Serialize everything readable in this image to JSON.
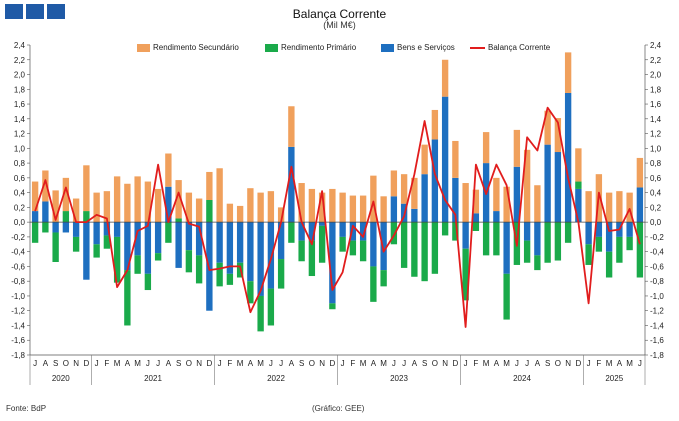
{
  "header": {
    "logo": "bdp-logo"
  },
  "chart_data": {
    "type": "bar",
    "title": "Balança Corrente",
    "subtitle": "(Mil M€)",
    "ylim": [
      -1.8,
      2.4
    ],
    "yticks": [
      "2,4",
      "2,2",
      "2,0",
      "1,8",
      "1,6",
      "1,4",
      "1,2",
      "1,0",
      "0,8",
      "0,6",
      "0,4",
      "0,2",
      "0,0",
      "-0,2",
      "-0,4",
      "-0,6",
      "-0,8",
      "-1,0",
      "-1,2",
      "-1,4",
      "-1,6",
      "-1,8"
    ],
    "categories": [
      "J",
      "A",
      "S",
      "O",
      "N",
      "D",
      "J",
      "F",
      "M",
      "A",
      "M",
      "J",
      "J",
      "A",
      "S",
      "O",
      "N",
      "D",
      "J",
      "F",
      "M",
      "A",
      "M",
      "J",
      "J",
      "A",
      "S",
      "O",
      "N",
      "D",
      "J",
      "F",
      "M",
      "A",
      "M",
      "J",
      "J",
      "A",
      "S",
      "O",
      "N",
      "D",
      "J",
      "F",
      "M",
      "A",
      "M",
      "J",
      "J",
      "A",
      "S",
      "O",
      "N",
      "D",
      "J",
      "F",
      "M",
      "A",
      "M",
      "J"
    ],
    "years": [
      {
        "label": "2020",
        "start": 0,
        "end": 5
      },
      {
        "label": "2021",
        "start": 6,
        "end": 17
      },
      {
        "label": "2022",
        "start": 18,
        "end": 29
      },
      {
        "label": "2023",
        "start": 30,
        "end": 41
      },
      {
        "label": "2024",
        "start": 42,
        "end": 53
      },
      {
        "label": "2025",
        "start": 54,
        "end": 59
      }
    ],
    "legend": [
      "Rendimento Secundário",
      "Rendimento Primário",
      "Bens e Serviços",
      "Balança Corrente"
    ],
    "colors": {
      "secundario": "#f0a05c",
      "primario": "#1aaa4a",
      "bens": "#1e6fc0",
      "balanca": "#e11d1d"
    },
    "series": [
      {
        "name": "Rendimento Secundário",
        "values": [
          0.4,
          0.42,
          0.43,
          0.45,
          0.32,
          0.62,
          0.4,
          0.42,
          0.62,
          0.52,
          0.62,
          0.55,
          0.45,
          0.45,
          0.52,
          0.4,
          0.32,
          0.38,
          0.73,
          0.25,
          0.22,
          0.46,
          0.4,
          0.42,
          0.2,
          0.55,
          0.53,
          0.45,
          0.4,
          0.45,
          0.4,
          0.36,
          0.36,
          0.63,
          0.35,
          0.35,
          0.4,
          0.42,
          0.4,
          0.4,
          0.5,
          0.5,
          0.53,
          0.32,
          0.42,
          0.45,
          0.48,
          0.5,
          0.98,
          0.5,
          0.46,
          0.46,
          0.55,
          0.45,
          0.42,
          0.65,
          0.4,
          0.42,
          0.4,
          0.4
        ]
      },
      {
        "name": "Rendimento Primário",
        "values": [
          -0.28,
          -0.14,
          -0.4,
          0.15,
          -0.2,
          0.15,
          -0.18,
          -0.18,
          -0.62,
          -0.75,
          -0.25,
          -0.22,
          -0.1,
          -0.28,
          0.05,
          -0.3,
          -0.38,
          0.3,
          -0.32,
          -0.15,
          -0.2,
          -0.3,
          -0.48,
          -0.5,
          -0.4,
          -0.28,
          -0.28,
          -0.48,
          -0.5,
          -0.08,
          -0.2,
          -0.2,
          -0.28,
          -0.48,
          -0.22,
          -0.3,
          -0.62,
          -0.74,
          -0.8,
          -0.7,
          -0.18,
          -0.25,
          -0.7,
          -0.12,
          -0.45,
          -0.45,
          -0.62,
          -0.58,
          -0.3,
          -0.2,
          -0.55,
          -0.52,
          -0.28,
          0.1,
          -0.28,
          -0.2,
          -0.35,
          -0.35,
          -0.18,
          -0.75
        ]
      },
      {
        "name": "Bens e Serviços",
        "values": [
          0.15,
          0.28,
          -0.14,
          -0.14,
          -0.2,
          -0.78,
          -0.3,
          -0.18,
          -0.2,
          -0.65,
          -0.45,
          -0.7,
          -0.42,
          0.48,
          -0.62,
          -0.38,
          -0.45,
          -1.2,
          -0.55,
          -0.7,
          -0.55,
          -0.8,
          -1.0,
          -0.9,
          -0.5,
          1.02,
          -0.25,
          -0.25,
          -0.05,
          -1.1,
          -0.2,
          -0.25,
          -0.25,
          -0.6,
          -0.65,
          0.35,
          0.25,
          0.18,
          0.65,
          1.12,
          1.7,
          0.6,
          -0.36,
          0.12,
          0.8,
          0.15,
          -0.7,
          0.75,
          -0.25,
          -0.45,
          1.05,
          0.95,
          1.75,
          0.45,
          -0.3,
          -0.2,
          -0.4,
          -0.2,
          -0.2,
          0.47
        ]
      },
      {
        "name": "Balança Corrente",
        "values": [
          0.15,
          0.57,
          0.03,
          0.47,
          0.0,
          0.0,
          0.1,
          0.05,
          -0.88,
          -0.65,
          -0.12,
          -0.05,
          0.78,
          0.0,
          0.4,
          -0.02,
          -0.06,
          -0.65,
          -0.63,
          -0.6,
          -0.6,
          -1.22,
          -0.93,
          -0.5,
          0.0,
          0.75,
          0.0,
          -0.3,
          0.42,
          -0.92,
          -0.68,
          -0.05,
          -0.2,
          0.28,
          -0.4,
          -0.18,
          0.08,
          0.65,
          1.37,
          0.65,
          0.3,
          0.1,
          -1.42,
          0.78,
          0.38,
          0.78,
          0.5,
          -0.32,
          1.15,
          0.97,
          1.55,
          1.35,
          0.6,
          0.0,
          -1.1,
          0.4,
          -0.12,
          -0.1,
          0.18,
          -0.3
        ]
      }
    ]
  },
  "footer": {
    "source": "Fonte: BdP",
    "credit": "(Gráfico: GEE)"
  }
}
